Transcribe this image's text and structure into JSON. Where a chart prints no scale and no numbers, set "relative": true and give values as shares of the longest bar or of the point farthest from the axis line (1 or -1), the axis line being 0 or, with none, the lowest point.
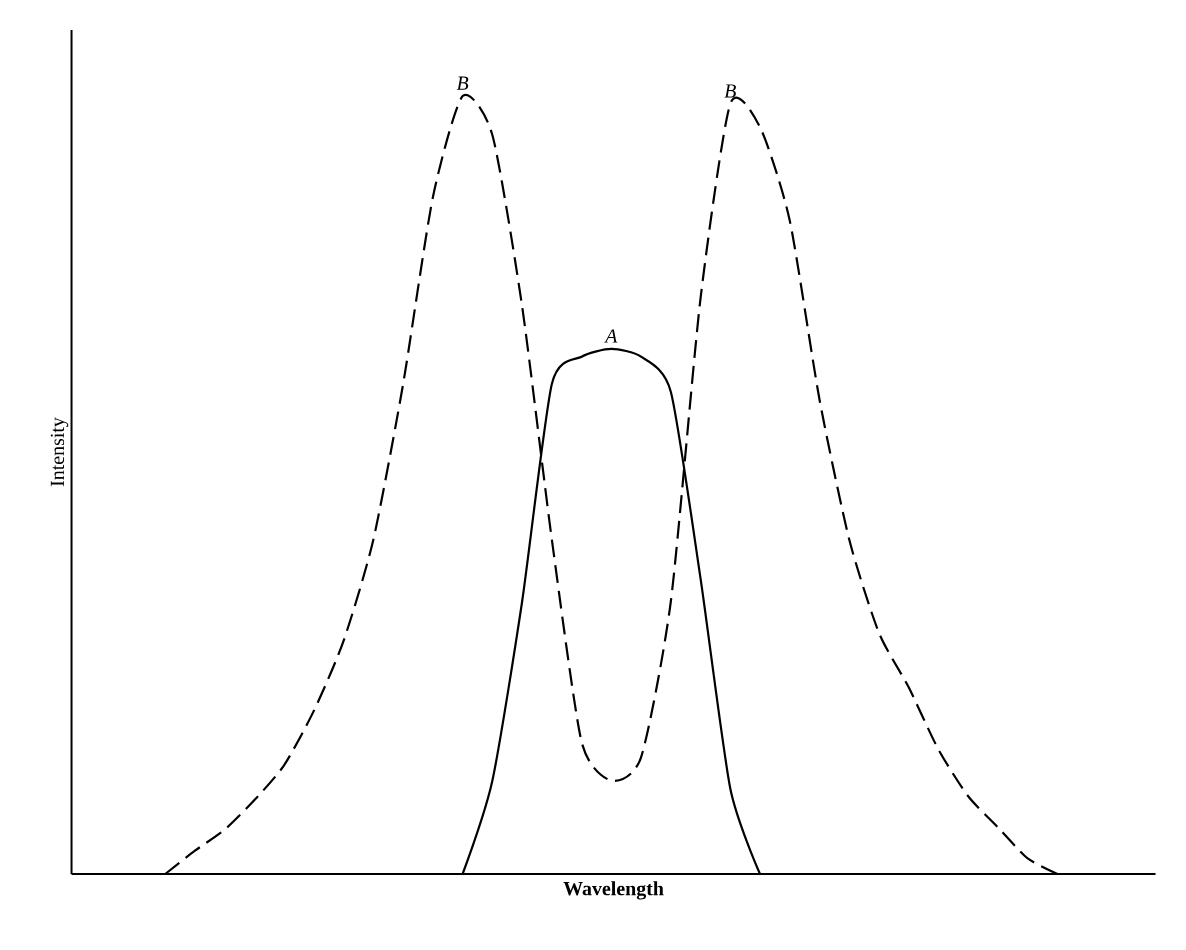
{
  "chart_data": {
    "type": "line",
    "relative": true,
    "xlabel": "Wavelength",
    "ylabel": "Intensity",
    "marker": "none",
    "categories": [
      null,
      null,
      null,
      null,
      null,
      null,
      null,
      null,
      null,
      null,
      null,
      null,
      null,
      null,
      null,
      null,
      null,
      null,
      null,
      null,
      null,
      null,
      null,
      null,
      null,
      null,
      null,
      null,
      null,
      null,
      null,
      null,
      null,
      null,
      null,
      null,
      null
    ],
    "series": [
      {
        "name": "B",
        "color": "#000000",
        "line_style": "dashed",
        "values": [
          null,
          null,
          null,
          0,
          0.03,
          0.057,
          0.095,
          0.14,
          0.21,
          0.3,
          0.43,
          0.63,
          0.87,
          1,
          0.95,
          0.73,
          0.43,
          0.17,
          0.12,
          0.15,
          0.35,
          0.74,
          0.99,
          0.96,
          0.84,
          0.61,
          0.43,
          0.31,
          0.24,
          0.16,
          0.1,
          0.06,
          0.02,
          0,
          null,
          null,
          null
        ]
      },
      {
        "name": "A",
        "color": "#000000",
        "line_style": "solid",
        "values": [
          null,
          null,
          null,
          null,
          null,
          null,
          null,
          null,
          null,
          null,
          null,
          null,
          null,
          0,
          0.12,
          0.35,
          0.63,
          0.665,
          0.675,
          0.665,
          0.62,
          0.38,
          0.11,
          0,
          null,
          null,
          null,
          null,
          null,
          null,
          null,
          null,
          null,
          null,
          null,
          null,
          null
        ]
      }
    ]
  }
}
